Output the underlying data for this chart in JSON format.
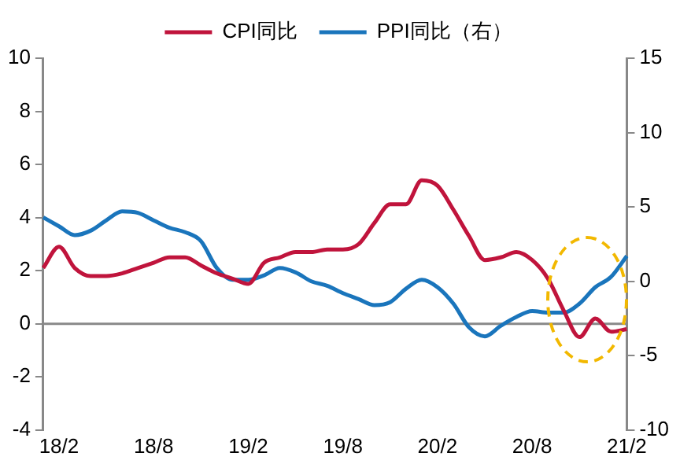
{
  "chart_data": {
    "type": "line",
    "categories": [
      null,
      "18/2",
      null,
      null,
      null,
      null,
      null,
      "18/8",
      null,
      null,
      null,
      null,
      null,
      "19/2",
      null,
      null,
      null,
      null,
      null,
      "19/8",
      null,
      null,
      null,
      null,
      null,
      "20/2",
      null,
      null,
      null,
      null,
      null,
      "20/8",
      null,
      null,
      null,
      null,
      null,
      "21/2"
    ],
    "series": [
      {
        "name": "CPI同比",
        "color": "#c0143c",
        "values": [
          2.1,
          2.9,
          2.1,
          1.8,
          1.8,
          1.9,
          2.1,
          2.3,
          2.5,
          2.5,
          2.2,
          1.9,
          1.7,
          1.5,
          2.3,
          2.5,
          2.7,
          2.7,
          2.8,
          2.8,
          3.0,
          3.8,
          4.5,
          4.5,
          5.4,
          5.2,
          4.3,
          3.3,
          2.4,
          2.5,
          2.7,
          2.4,
          1.7,
          0.5,
          -0.5,
          0.2,
          -0.3,
          -0.2
        ]
      },
      {
        "name": "PPI同比（右）",
        "color": "#1a75bc",
        "axis": "y2",
        "values": [
          4.3,
          3.7,
          3.1,
          3.4,
          4.1,
          4.7,
          4.6,
          4.1,
          3.6,
          3.3,
          2.7,
          0.9,
          0.1,
          0.1,
          0.4,
          0.9,
          0.6,
          0.0,
          -0.3,
          -0.8,
          -1.2,
          -1.6,
          -1.4,
          -0.5,
          0.1,
          -0.4,
          -1.5,
          -3.1,
          -3.7,
          -3.0,
          -2.4,
          -2.0,
          -2.1,
          -2.1,
          -1.5,
          -0.4,
          0.3,
          1.7
        ]
      }
    ],
    "ylim": [
      -4,
      10
    ],
    "yticks": [
      -4,
      -2,
      0,
      2,
      4,
      6,
      8,
      10
    ],
    "y2lim": [
      -10,
      15
    ],
    "y2ticks": [
      -10,
      -5,
      0,
      5,
      10,
      15
    ],
    "ref_lines": [
      {
        "axis": "y",
        "value": 0,
        "color": "#888888"
      }
    ],
    "legend": "top",
    "grid": false,
    "marker": "none",
    "line_style": "solid"
  }
}
